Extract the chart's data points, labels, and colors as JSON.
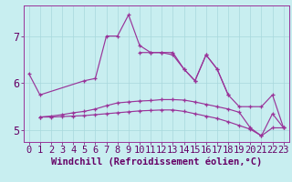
{
  "xlabel": "Windchill (Refroidissement éolien,°C)",
  "background_color": "#c8eef0",
  "line_color": "#993399",
  "grid_color": "#b0dde0",
  "x": [
    0,
    1,
    2,
    3,
    4,
    5,
    6,
    7,
    8,
    9,
    10,
    11,
    12,
    13,
    14,
    15,
    16,
    17,
    18,
    19,
    20,
    21,
    22,
    23
  ],
  "line1": [
    6.2,
    5.75,
    null,
    null,
    null,
    6.05,
    6.1,
    7.0,
    7.0,
    7.45,
    6.8,
    6.65,
    6.65,
    6.65,
    6.3,
    6.05,
    6.6,
    6.3,
    5.75,
    null,
    null,
    null,
    null,
    null
  ],
  "line2": [
    null,
    null,
    null,
    null,
    null,
    null,
    null,
    null,
    null,
    null,
    6.65,
    6.65,
    6.65,
    6.6,
    6.3,
    6.05,
    6.6,
    6.3,
    5.75,
    5.5,
    5.5,
    5.5,
    5.75,
    5.05
  ],
  "line3": [
    null,
    5.28,
    5.3,
    5.33,
    5.37,
    5.4,
    5.45,
    5.52,
    5.58,
    5.6,
    5.62,
    5.63,
    5.65,
    5.65,
    5.64,
    5.6,
    5.55,
    5.5,
    5.45,
    5.38,
    5.05,
    4.88,
    5.35,
    5.05
  ],
  "line4": [
    null,
    5.28,
    5.28,
    5.29,
    5.3,
    5.31,
    5.33,
    5.35,
    5.37,
    5.39,
    5.41,
    5.42,
    5.43,
    5.43,
    5.4,
    5.35,
    5.3,
    5.25,
    5.18,
    5.1,
    5.02,
    4.88,
    5.05,
    5.05
  ],
  "ylim": [
    4.75,
    7.65
  ],
  "yticks": [
    5,
    6,
    7
  ],
  "tick_fontsize": 7.5,
  "xlabel_fontsize": 7.5
}
